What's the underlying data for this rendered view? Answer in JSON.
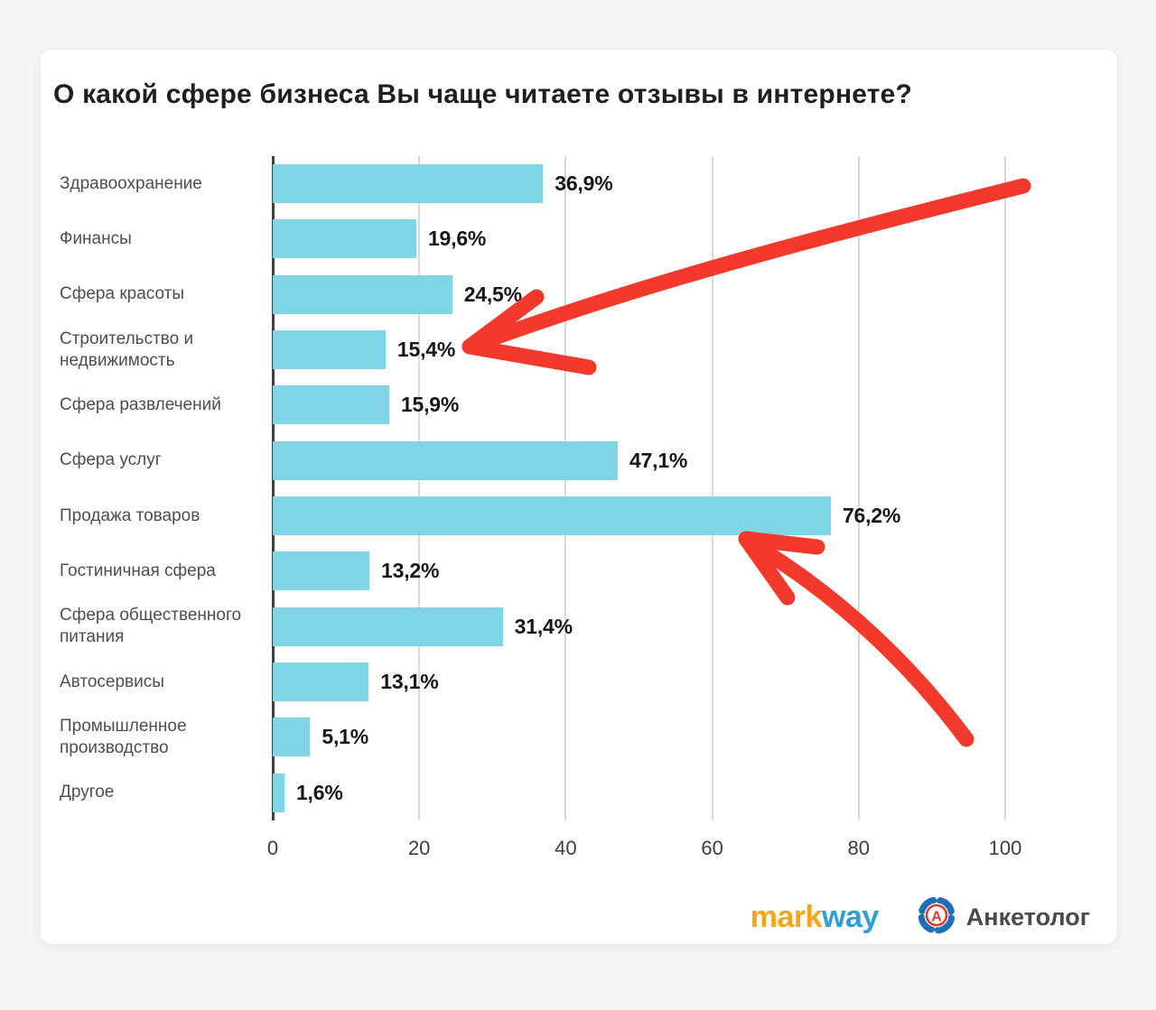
{
  "page": {
    "background": "#f5f5f7",
    "card_background": "#ffffff"
  },
  "title": "О какой сфере бизнеса Вы чаще читаете отзывы  в интернете?",
  "chart_data": {
    "type": "bar",
    "orientation": "horizontal",
    "title": "О какой сфере бизнеса Вы чаще читаете отзывы в интернете?",
    "categories": [
      "Здравоохранение",
      "Финансы",
      "Сфера красоты",
      "Строительство и недвижимость",
      "Сфера развлечений",
      "Сфера услуг",
      "Продажа товаров",
      "Гостиничная сфера",
      "Сфера общественного питания",
      "Автосервисы",
      "Промышленное производство",
      "Другое"
    ],
    "values": [
      36.9,
      19.6,
      24.5,
      15.4,
      15.9,
      47.1,
      76.2,
      13.2,
      31.4,
      13.1,
      5.1,
      1.6
    ],
    "value_labels": [
      "36,9%",
      "19,6%",
      "24,5%",
      "15,4%",
      "15,9%",
      "47,1%",
      "76,2%",
      "13,2%",
      "31,4%",
      "13,1%",
      "5,1%",
      "1,6%"
    ],
    "xlabel": "",
    "ylabel": "",
    "xlim": [
      0,
      100
    ],
    "x_ticks": [
      "0",
      "20",
      "40",
      "60",
      "80",
      "100"
    ],
    "grid": "vertical gridlines on",
    "legend": "none",
    "bar_color": "#7fd5e6",
    "grid_color": "#d9d9dc",
    "axis_color": "#3f3f44"
  },
  "annotations": {
    "arrow_color": "#f2392b",
    "arrows": [
      {
        "name": "arrow-to-construction-bar",
        "points_at": "Строительство и недвижимость 15,4%"
      },
      {
        "name": "arrow-to-goods-bar",
        "points_at": "Продажа товаров 76,2%"
      }
    ]
  },
  "branding": {
    "markway": {
      "part1": "mark",
      "part2": "way",
      "color1": "#f6a41e",
      "color2": "#2e9fd9"
    },
    "anketolog": {
      "label": "Анкетолог",
      "ring_color": "#1d70b7",
      "letter": "А",
      "letter_color": "#df3b30"
    }
  }
}
